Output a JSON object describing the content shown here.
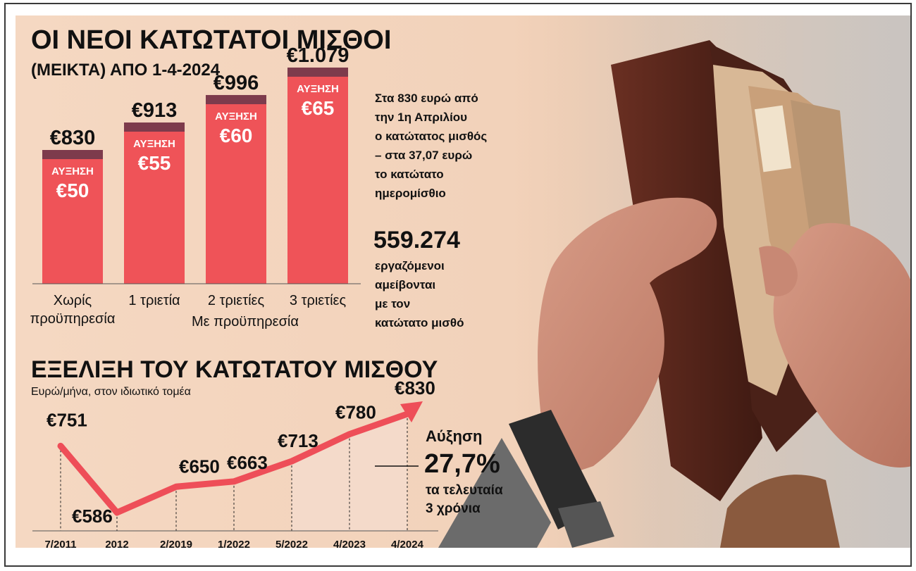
{
  "titles": {
    "main": "ΟΙ ΝΕΟΙ ΚΑΤΩΤΑΤΟΙ ΜΙΣΘΟΙ",
    "sub": "(ΜΕΙΚΤΑ) ΑΠΟ 1-4-2024",
    "line": "ΕΞΕΛΙΞΗ ΤΟΥ ΚΑΤΩΤΑΤΟΥ ΜΙΣΘΟΥ",
    "line_sub": "Ευρώ/μήνα, στον ιδιωτικό τομέα"
  },
  "side_text": {
    "p1": [
      "Στα 830 ευρώ από",
      "την 1η Απριλίου",
      "ο κατώτατος μισθός",
      "– στα 37,07 ευρώ",
      "το κατώτατο",
      "ημερομίσθιο"
    ],
    "workers_number": "559.274",
    "p2": [
      "εργαζόμενοι",
      "αμείβονται",
      "με τον",
      "κατώτατο μισθό"
    ]
  },
  "annotation": {
    "label": "Αύξηση",
    "value": "27,7%",
    "line1": "τα τελευταία",
    "line2": "3 χρόνια"
  },
  "colors": {
    "bar": "#ef5358",
    "bar_cap": "#7d3b4c",
    "line": "#ee4e58",
    "text": "#111111"
  },
  "chart_data": [
    {
      "type": "bar",
      "categories": [
        "Χωρίς προϋπηρεσία",
        "1 τριετία",
        "2 τριετίες",
        "3 τριετίες"
      ],
      "category_lines": [
        [
          "Χωρίς",
          "προϋπηρεσία"
        ],
        [
          "1 τριετία"
        ],
        [
          "2 τριετίες"
        ],
        [
          "3 τριετίες"
        ]
      ],
      "group_label": "Με προϋπηρεσία",
      "values": [
        830,
        913,
        996,
        1079
      ],
      "value_labels": [
        "€830",
        "€913",
        "€996",
        "€1.079"
      ],
      "increase_label": "ΑΥΞΗΣΗ",
      "increases": [
        50,
        55,
        60,
        65
      ],
      "increase_labels": [
        "€50",
        "€55",
        "€60",
        "€65"
      ]
    },
    {
      "type": "line",
      "x": [
        "7/2011",
        "2012",
        "2/2019",
        "1/2022",
        "5/2022",
        "4/2023",
        "4/2024"
      ],
      "values": [
        751,
        586,
        650,
        663,
        713,
        780,
        830
      ],
      "value_labels": [
        "€751",
        "€586",
        "€650",
        "€663",
        "€713",
        "€780",
        "€830"
      ]
    }
  ]
}
